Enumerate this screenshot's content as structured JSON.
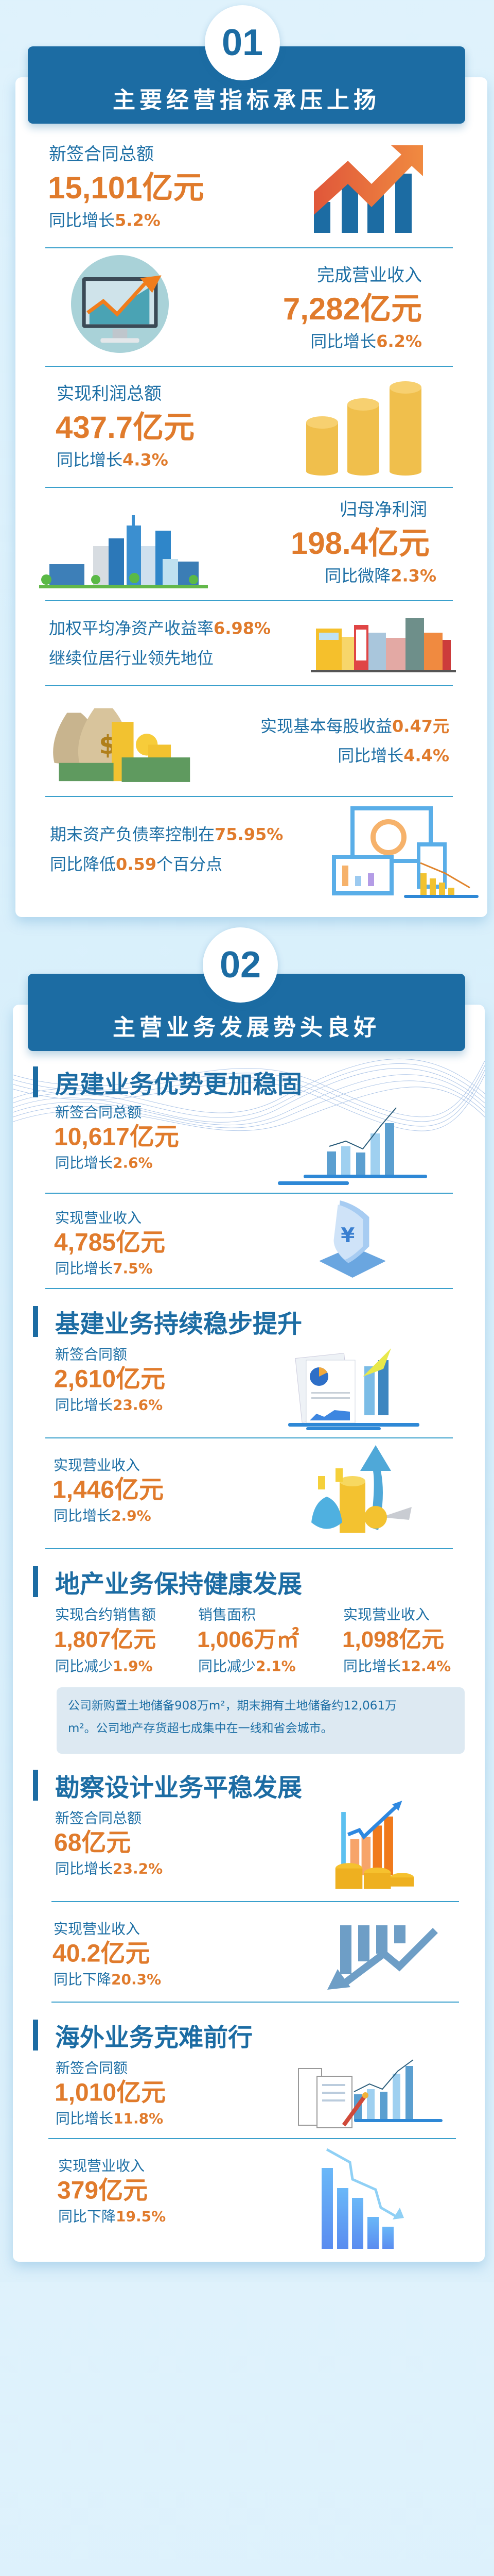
{
  "colors": {
    "brand_blue": "#1c6ca3",
    "text_blue": "#1d6fa5",
    "accent_orange": "#e07b2c",
    "divider": "#3aa0cc",
    "background": "#dcf0fb"
  },
  "section1": {
    "number": "01",
    "title": "主要经营指标承压上扬",
    "items": [
      {
        "label": "新签合同总额",
        "value": "15,101亿元",
        "sub_prefix": "同比增长",
        "sub_value": "5.2%",
        "icon": "bar-chart-up-arrow-icon"
      },
      {
        "label": "完成营业收入",
        "value": "7,282亿元",
        "sub_prefix": "同比增长",
        "sub_value": "6.2%",
        "icon": "monitor-chart-icon"
      },
      {
        "label": "实现利润总额",
        "value": "437.7亿元",
        "sub_prefix": "同比增长",
        "sub_value": "4.3%",
        "icon": "coin-stacks-icon"
      },
      {
        "label": "归母净利润",
        "value": "198.4亿元",
        "sub_prefix": "同比微降",
        "sub_value": "2.3%",
        "icon": "city-skyline-icon"
      },
      {
        "line1_prefix": "加权平均净资产收益率",
        "line1_value": "6.98%",
        "line2": "继续位居行业领先地位",
        "icon": "buildings-icon"
      },
      {
        "line1_prefix": "实现基本每股收益",
        "line1_value": "0.47元",
        "sub_prefix": "同比增长",
        "sub_value": "4.4%",
        "icon": "money-bags-icon"
      },
      {
        "line1_prefix": "期末资产负债率控制在",
        "line1_value": "75.95%",
        "line2_prefix": "同比降低",
        "line2_value": "0.59",
        "line2_suffix": "个百分点",
        "icon": "devices-chart-icon"
      }
    ]
  },
  "section2": {
    "number": "02",
    "title": "主营业务发展势头良好",
    "housing": {
      "heading": "房建业务优势更加稳固",
      "items": [
        {
          "label": "新签合同总额",
          "value": "10,617亿元",
          "sub_prefix": "同比增长",
          "sub_value": "2.6%"
        },
        {
          "label": "实现营业收入",
          "value": "4,785亿元",
          "sub_prefix": "同比增长",
          "sub_value": "7.5%"
        }
      ]
    },
    "infrastructure": {
      "heading": "基建业务持续稳步提升",
      "items": [
        {
          "label": "新签合同额",
          "value": "2,610亿元",
          "sub_prefix": "同比增长",
          "sub_value": "23.6%"
        },
        {
          "label": "实现营业收入",
          "value": "1,446亿元",
          "sub_prefix": "同比增长",
          "sub_value": "2.9%"
        }
      ]
    },
    "real_estate": {
      "heading": "地产业务保持健康发展",
      "columns": [
        {
          "label": "实现合约销售额",
          "value": "1,807亿元",
          "sub_prefix": "同比减少",
          "sub_value": "1.9%"
        },
        {
          "label": "销售面积",
          "value": "1,006万㎡",
          "sub_prefix": "同比减少",
          "sub_value": "2.1%"
        },
        {
          "label": "实现营业收入",
          "value": "1,098亿元",
          "sub_prefix": "同比增长",
          "sub_value": "12.4%"
        }
      ],
      "note_line1": "公司新购置土地储备908万m²，期末拥有土地储备约12,061万",
      "note_line2": "m²。公司地产存货超七成集中在一线和省会城市。"
    },
    "survey_design": {
      "heading": "勘察设计业务平稳发展",
      "items": [
        {
          "label": "新签合同总额",
          "value": "68亿元",
          "sub_prefix": "同比增长",
          "sub_value": "23.2%"
        },
        {
          "label": "实现营业收入",
          "value": "40.2亿元",
          "sub_prefix": "同比下降",
          "sub_value": "20.3%"
        }
      ]
    },
    "overseas": {
      "heading": "海外业务克难前行",
      "items": [
        {
          "label": "新签合同额",
          "value": "1,010亿元",
          "sub_prefix": "同比增长",
          "sub_value": "11.8%"
        },
        {
          "label": "实现营业收入",
          "value": "379亿元",
          "sub_prefix": "同比下降",
          "sub_value": "19.5%"
        }
      ]
    }
  }
}
